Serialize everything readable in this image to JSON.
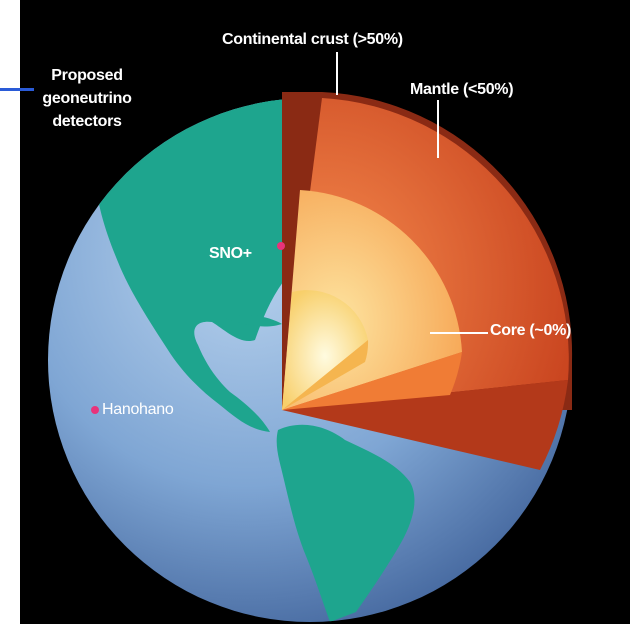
{
  "colors": {
    "background": "#000000",
    "ocean": "#7fa6d4",
    "land": "#1ea58e",
    "crust": "#8a2a14",
    "mantle": "#d85a2c",
    "outer_core": "#f59a46",
    "inner_core": "#fbe58e",
    "detector_marker": "#e8337a",
    "header_line": "#2a5bd7"
  },
  "labels": {
    "proposed": [
      "Proposed",
      "geoneutrino",
      "detectors"
    ],
    "crust": "Continental crust (>50%)",
    "mantle": "Mantle (<50%)",
    "core": "Core (~0%)",
    "sno": "SNO+",
    "hanohano": "Hanohano"
  }
}
